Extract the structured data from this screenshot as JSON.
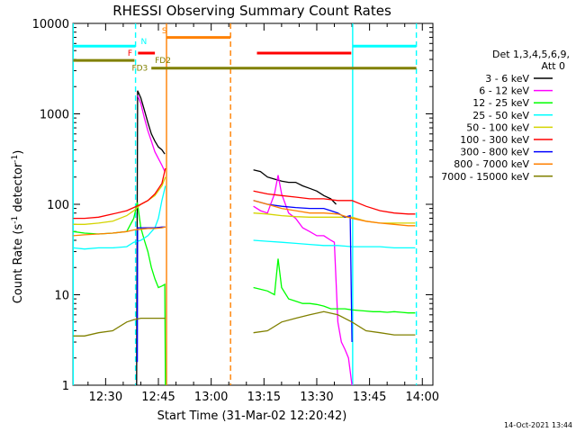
{
  "chart_data": {
    "type": "line",
    "title": "RHESSI Observing Summary Count Rates",
    "xlabel": "Start Time (31-Mar-02 12:20:42)",
    "ylabel_main": "Count Rate (s",
    "ylabel_sup1": "-1",
    "ylabel_mid": " detector",
    "ylabel_sup2": "-1",
    "ylabel_end": ")",
    "yscale": "log",
    "ylim": [
      1,
      10000
    ],
    "xlim_minutes": [
      740.7,
      843.0
    ],
    "yticks": [
      {
        "value": 1,
        "label": "1"
      },
      {
        "value": 10,
        "label": "10"
      },
      {
        "value": 100,
        "label": "100"
      },
      {
        "value": 1000,
        "label": "1000"
      },
      {
        "value": 10000,
        "label": "10000"
      }
    ],
    "xticks": [
      {
        "minute": 750,
        "label": "12:30"
      },
      {
        "minute": 765,
        "label": "12:45"
      },
      {
        "minute": 780,
        "label": "13:00"
      },
      {
        "minute": 795,
        "label": "13:15"
      },
      {
        "minute": 810,
        "label": "13:30"
      },
      {
        "minute": 825,
        "label": "13:45"
      },
      {
        "minute": 840,
        "label": "14:00"
      }
    ],
    "legend_title_1": "Det 1,3,4,5,6,9,",
    "legend_title_2": "Att 0",
    "legend_placement": "right",
    "stamp": "14-Oct-2021 13:44",
    "series": [
      {
        "name": "3 - 6 keV",
        "color": "#000000",
        "segments": [
          [
            [
              759,
              null
            ]
          ],
          [
            [
              758.8,
              1
            ],
            [
              759.1,
              1800
            ],
            [
              760,
              1500
            ],
            [
              761,
              1100
            ],
            [
              762,
              800
            ],
            [
              763,
              600
            ],
            [
              764,
              500
            ],
            [
              765,
              430
            ],
            [
              766,
              400
            ],
            [
              766.8,
              360
            ]
          ],
          [
            [
              792,
              240
            ],
            [
              794,
              230
            ],
            [
              796,
              200
            ],
            [
              798,
              190
            ],
            [
              800,
              180
            ],
            [
              802,
              175
            ],
            [
              804,
              175
            ],
            [
              806,
              160
            ],
            [
              808,
              150
            ],
            [
              810,
              140
            ],
            [
              812,
              125
            ],
            [
              814,
              115
            ],
            [
              815.5,
              100
            ]
          ]
        ]
      },
      {
        "name": "6 - 12 keV",
        "color": "#ff00ff",
        "segments": [
          [
            [
              759.1,
              1600
            ],
            [
              760,
              1300
            ],
            [
              761,
              900
            ],
            [
              762,
              650
            ],
            [
              763,
              500
            ],
            [
              764,
              380
            ],
            [
              765,
              320
            ],
            [
              766,
              270
            ],
            [
              766.8,
              230
            ]
          ],
          [
            [
              792,
              95
            ],
            [
              794,
              85
            ],
            [
              796,
              80
            ],
            [
              798,
              130
            ],
            [
              799,
              210
            ],
            [
              800,
              130
            ],
            [
              802,
              80
            ],
            [
              804,
              70
            ],
            [
              806,
              55
            ],
            [
              808,
              50
            ],
            [
              810,
              45
            ],
            [
              812,
              45
            ],
            [
              814,
              40
            ],
            [
              815,
              38
            ],
            [
              816,
              5
            ],
            [
              817,
              3
            ],
            [
              818,
              2.5
            ],
            [
              819,
              2
            ],
            [
              820,
              1
            ]
          ]
        ]
      },
      {
        "name": "12 - 25 keV",
        "color": "#00ff00",
        "segments": [
          [
            [
              740.8,
              50
            ],
            [
              744,
              48
            ],
            [
              748,
              47
            ],
            [
              752,
              48
            ],
            [
              756,
              50
            ],
            [
              758,
              70
            ],
            [
              759,
              105
            ],
            [
              760,
              55
            ],
            [
              761,
              40
            ],
            [
              762,
              30
            ],
            [
              763,
              20
            ],
            [
              764,
              15
            ],
            [
              765,
              12
            ],
            [
              766,
              12.5
            ],
            [
              766.8,
              13
            ],
            [
              767,
              1
            ]
          ],
          [
            [
              792,
              12
            ],
            [
              794,
              11.5
            ],
            [
              796,
              11
            ],
            [
              798,
              10
            ],
            [
              799,
              25
            ],
            [
              800,
              12
            ],
            [
              802,
              9
            ],
            [
              804,
              8.5
            ],
            [
              806,
              8
            ],
            [
              808,
              8
            ],
            [
              810,
              7.8
            ],
            [
              812,
              7.5
            ],
            [
              814,
              7
            ],
            [
              816,
              7
            ],
            [
              818,
              7
            ],
            [
              820,
              6.8
            ],
            [
              822,
              6.7
            ],
            [
              824,
              6.6
            ],
            [
              826,
              6.5
            ],
            [
              828,
              6.5
            ],
            [
              830,
              6.4
            ],
            [
              832,
              6.5
            ],
            [
              834,
              6.4
            ],
            [
              836,
              6.3
            ],
            [
              838,
              6.3
            ]
          ]
        ]
      },
      {
        "name": "25 - 50 keV",
        "color": "#00ffff",
        "segments": [
          [
            [
              740.8,
              33
            ],
            [
              744,
              32
            ],
            [
              748,
              33
            ],
            [
              752,
              33
            ],
            [
              756,
              34
            ],
            [
              758,
              38
            ],
            [
              760,
              40
            ],
            [
              762,
              45
            ],
            [
              764,
              55
            ],
            [
              765,
              70
            ],
            [
              766,
              110
            ],
            [
              767,
              160
            ]
          ],
          [
            [
              792,
              40
            ],
            [
              796,
              39
            ],
            [
              800,
              38
            ],
            [
              804,
              37
            ],
            [
              808,
              36
            ],
            [
              812,
              35
            ],
            [
              816,
              35
            ],
            [
              820,
              34
            ],
            [
              824,
              34
            ],
            [
              828,
              34
            ],
            [
              832,
              33
            ],
            [
              836,
              33
            ],
            [
              838,
              33
            ]
          ]
        ]
      },
      {
        "name": "50 - 100 keV",
        "color": "#d4d400",
        "segments": [
          [
            [
              740.8,
              60
            ],
            [
              744,
              60
            ],
            [
              748,
              62
            ],
            [
              752,
              65
            ],
            [
              756,
              75
            ],
            [
              758,
              85
            ],
            [
              760,
              100
            ],
            [
              762,
              110
            ],
            [
              764,
              125
            ],
            [
              766,
              160
            ],
            [
              767,
              200
            ]
          ],
          [
            [
              792,
              80
            ],
            [
              796,
              78
            ],
            [
              800,
              75
            ],
            [
              804,
              73
            ],
            [
              808,
              72
            ],
            [
              812,
              72
            ],
            [
              816,
              72
            ],
            [
              820,
              72
            ],
            [
              824,
              65
            ],
            [
              828,
              62
            ],
            [
              832,
              62
            ],
            [
              836,
              62
            ],
            [
              838,
              62
            ]
          ]
        ]
      },
      {
        "name": "100 - 300 keV",
        "color": "#ff0000",
        "segments": [
          [
            [
              740.8,
              70
            ],
            [
              744,
              70
            ],
            [
              748,
              72
            ],
            [
              752,
              78
            ],
            [
              756,
              85
            ],
            [
              758,
              92
            ],
            [
              760,
              100
            ],
            [
              762,
              110
            ],
            [
              764,
              130
            ],
            [
              766,
              170
            ],
            [
              767,
              250
            ]
          ],
          [
            [
              792,
              140
            ],
            [
              796,
              130
            ],
            [
              800,
              125
            ],
            [
              804,
              120
            ],
            [
              808,
              115
            ],
            [
              812,
              115
            ],
            [
              816,
              110
            ],
            [
              820,
              110
            ],
            [
              824,
              95
            ],
            [
              828,
              85
            ],
            [
              832,
              80
            ],
            [
              836,
              78
            ],
            [
              838,
              78
            ]
          ]
        ]
      },
      {
        "name": "300 - 800 keV",
        "color": "#0000ff",
        "segments": [
          [
            [
              759,
              1.8
            ],
            [
              759.1,
              55
            ],
            [
              762,
              55
            ],
            [
              764,
              55
            ],
            [
              766,
              56
            ],
            [
              767,
              56
            ]
          ],
          [
            [
              792,
              110
            ],
            [
              796,
              100
            ],
            [
              800,
              95
            ],
            [
              804,
              92
            ],
            [
              808,
              90
            ],
            [
              812,
              90
            ],
            [
              814,
              85
            ],
            [
              816,
              80
            ],
            [
              818,
              72
            ],
            [
              819.5,
              75
            ],
            [
              820,
              3
            ]
          ]
        ]
      },
      {
        "name": "800 - 7000 keV",
        "color": "#ff8000",
        "segments": [
          [
            [
              740.8,
              45
            ],
            [
              744,
              46
            ],
            [
              748,
              47
            ],
            [
              752,
              48
            ],
            [
              756,
              50
            ],
            [
              758,
              52
            ],
            [
              760,
              53
            ],
            [
              762,
              54
            ],
            [
              764,
              54
            ],
            [
              766,
              55
            ],
            [
              767,
              56
            ]
          ],
          [
            [
              792,
              110
            ],
            [
              796,
              100
            ],
            [
              800,
              90
            ],
            [
              804,
              85
            ],
            [
              808,
              80
            ],
            [
              812,
              80
            ],
            [
              816,
              78
            ],
            [
              820,
              70
            ],
            [
              824,
              65
            ],
            [
              828,
              62
            ],
            [
              832,
              60
            ],
            [
              836,
              58
            ],
            [
              838,
              58
            ]
          ]
        ]
      },
      {
        "name": "7000 - 15000 keV",
        "color": "#808000",
        "segments": [
          [
            [
              740.8,
              3.5
            ],
            [
              744,
              3.5
            ],
            [
              748,
              3.8
            ],
            [
              752,
              4
            ],
            [
              756,
              5
            ],
            [
              758,
              5.3
            ],
            [
              760,
              5.5
            ],
            [
              762,
              5.5
            ],
            [
              764,
              5.5
            ],
            [
              766,
              5.5
            ],
            [
              767,
              5.5
            ]
          ],
          [
            [
              792,
              3.8
            ],
            [
              796,
              4
            ],
            [
              800,
              5
            ],
            [
              804,
              5.5
            ],
            [
              808,
              6
            ],
            [
              812,
              6.5
            ],
            [
              816,
              6
            ],
            [
              820,
              5
            ],
            [
              824,
              4
            ],
            [
              828,
              3.8
            ],
            [
              832,
              3.6
            ],
            [
              836,
              3.6
            ],
            [
              838,
              3.6
            ]
          ]
        ]
      }
    ],
    "vlines": [
      {
        "minute": 740.8,
        "color": "#00ffff",
        "style": "solid"
      },
      {
        "minute": 758.5,
        "color": "#00ffff",
        "style": "dashed"
      },
      {
        "minute": 767.3,
        "color": "#ff8000",
        "style": "solid"
      },
      {
        "minute": 785.5,
        "color": "#ff8000",
        "style": "dashed"
      },
      {
        "minute": 820.2,
        "color": "#00ffff",
        "style": "solid"
      },
      {
        "minute": 838.3,
        "color": "#00ffff",
        "style": "dashed"
      }
    ],
    "bars": [
      {
        "label": "N",
        "color": "#00ffff",
        "y": 5600,
        "from": 740.8,
        "to": 758.5,
        "label_minute": 760,
        "label_y": 6300,
        "label_side": "right"
      },
      {
        "label": "",
        "color": "#00ffff",
        "y": 5600,
        "from": 820.2,
        "to": 838.3
      },
      {
        "label": "F",
        "color": "#ff0000",
        "y": 4700,
        "from": 759.2,
        "to": 764,
        "label_minute": 757.6,
        "label_y": 4700,
        "label_side": "left"
      },
      {
        "label": "",
        "color": "#ff0000",
        "y": 4700,
        "from": 793,
        "to": 819.8
      },
      {
        "label": "S",
        "color": "#ff8000",
        "y": 7000,
        "from": 767.3,
        "to": 785.5,
        "label_minute": 766,
        "label_y": 8300,
        "label_side": "right"
      },
      {
        "label": "FD2",
        "color": "#808000",
        "y": 3900,
        "from": 740.8,
        "to": 758.2,
        "label_minute": 764,
        "label_y": 3900,
        "label_side": "right"
      },
      {
        "label": "FD3",
        "color": "#808000",
        "y": 3200,
        "from": 763,
        "to": 838.3,
        "label_minute": 762,
        "label_y": 3200,
        "label_side": "left"
      }
    ]
  }
}
